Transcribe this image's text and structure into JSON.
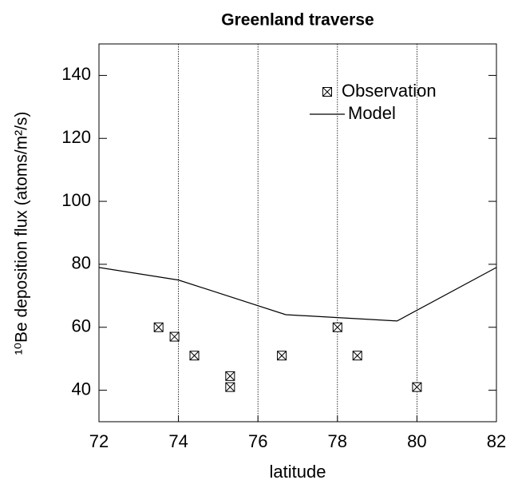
{
  "chart_data": {
    "type": "scatter+line",
    "title": "Greenland traverse",
    "xlabel": "latitude",
    "ylabel": "¹⁰Be deposition flux (atoms/m²/s)",
    "xlim": [
      72,
      82
    ],
    "xticks": [
      72,
      74,
      76,
      78,
      80,
      82
    ],
    "ylim": [
      30,
      150
    ],
    "yticks": [
      40,
      60,
      80,
      100,
      120,
      140
    ],
    "grid": "x",
    "legend": "upper right",
    "series": [
      {
        "name": "Observation",
        "type": "scatter",
        "color": "#000000",
        "x": [
          73.5,
          73.9,
          74.4,
          75.3,
          75.3,
          76.6,
          78,
          78.5,
          80
        ],
        "values": [
          60,
          57,
          51,
          44.5,
          41,
          51,
          60,
          51,
          41
        ]
      },
      {
        "name": "Model",
        "type": "line",
        "color": "#000000",
        "x": [
          72,
          74,
          76.7,
          79.5,
          82
        ],
        "values": [
          79,
          75,
          64,
          62,
          79
        ]
      }
    ]
  }
}
